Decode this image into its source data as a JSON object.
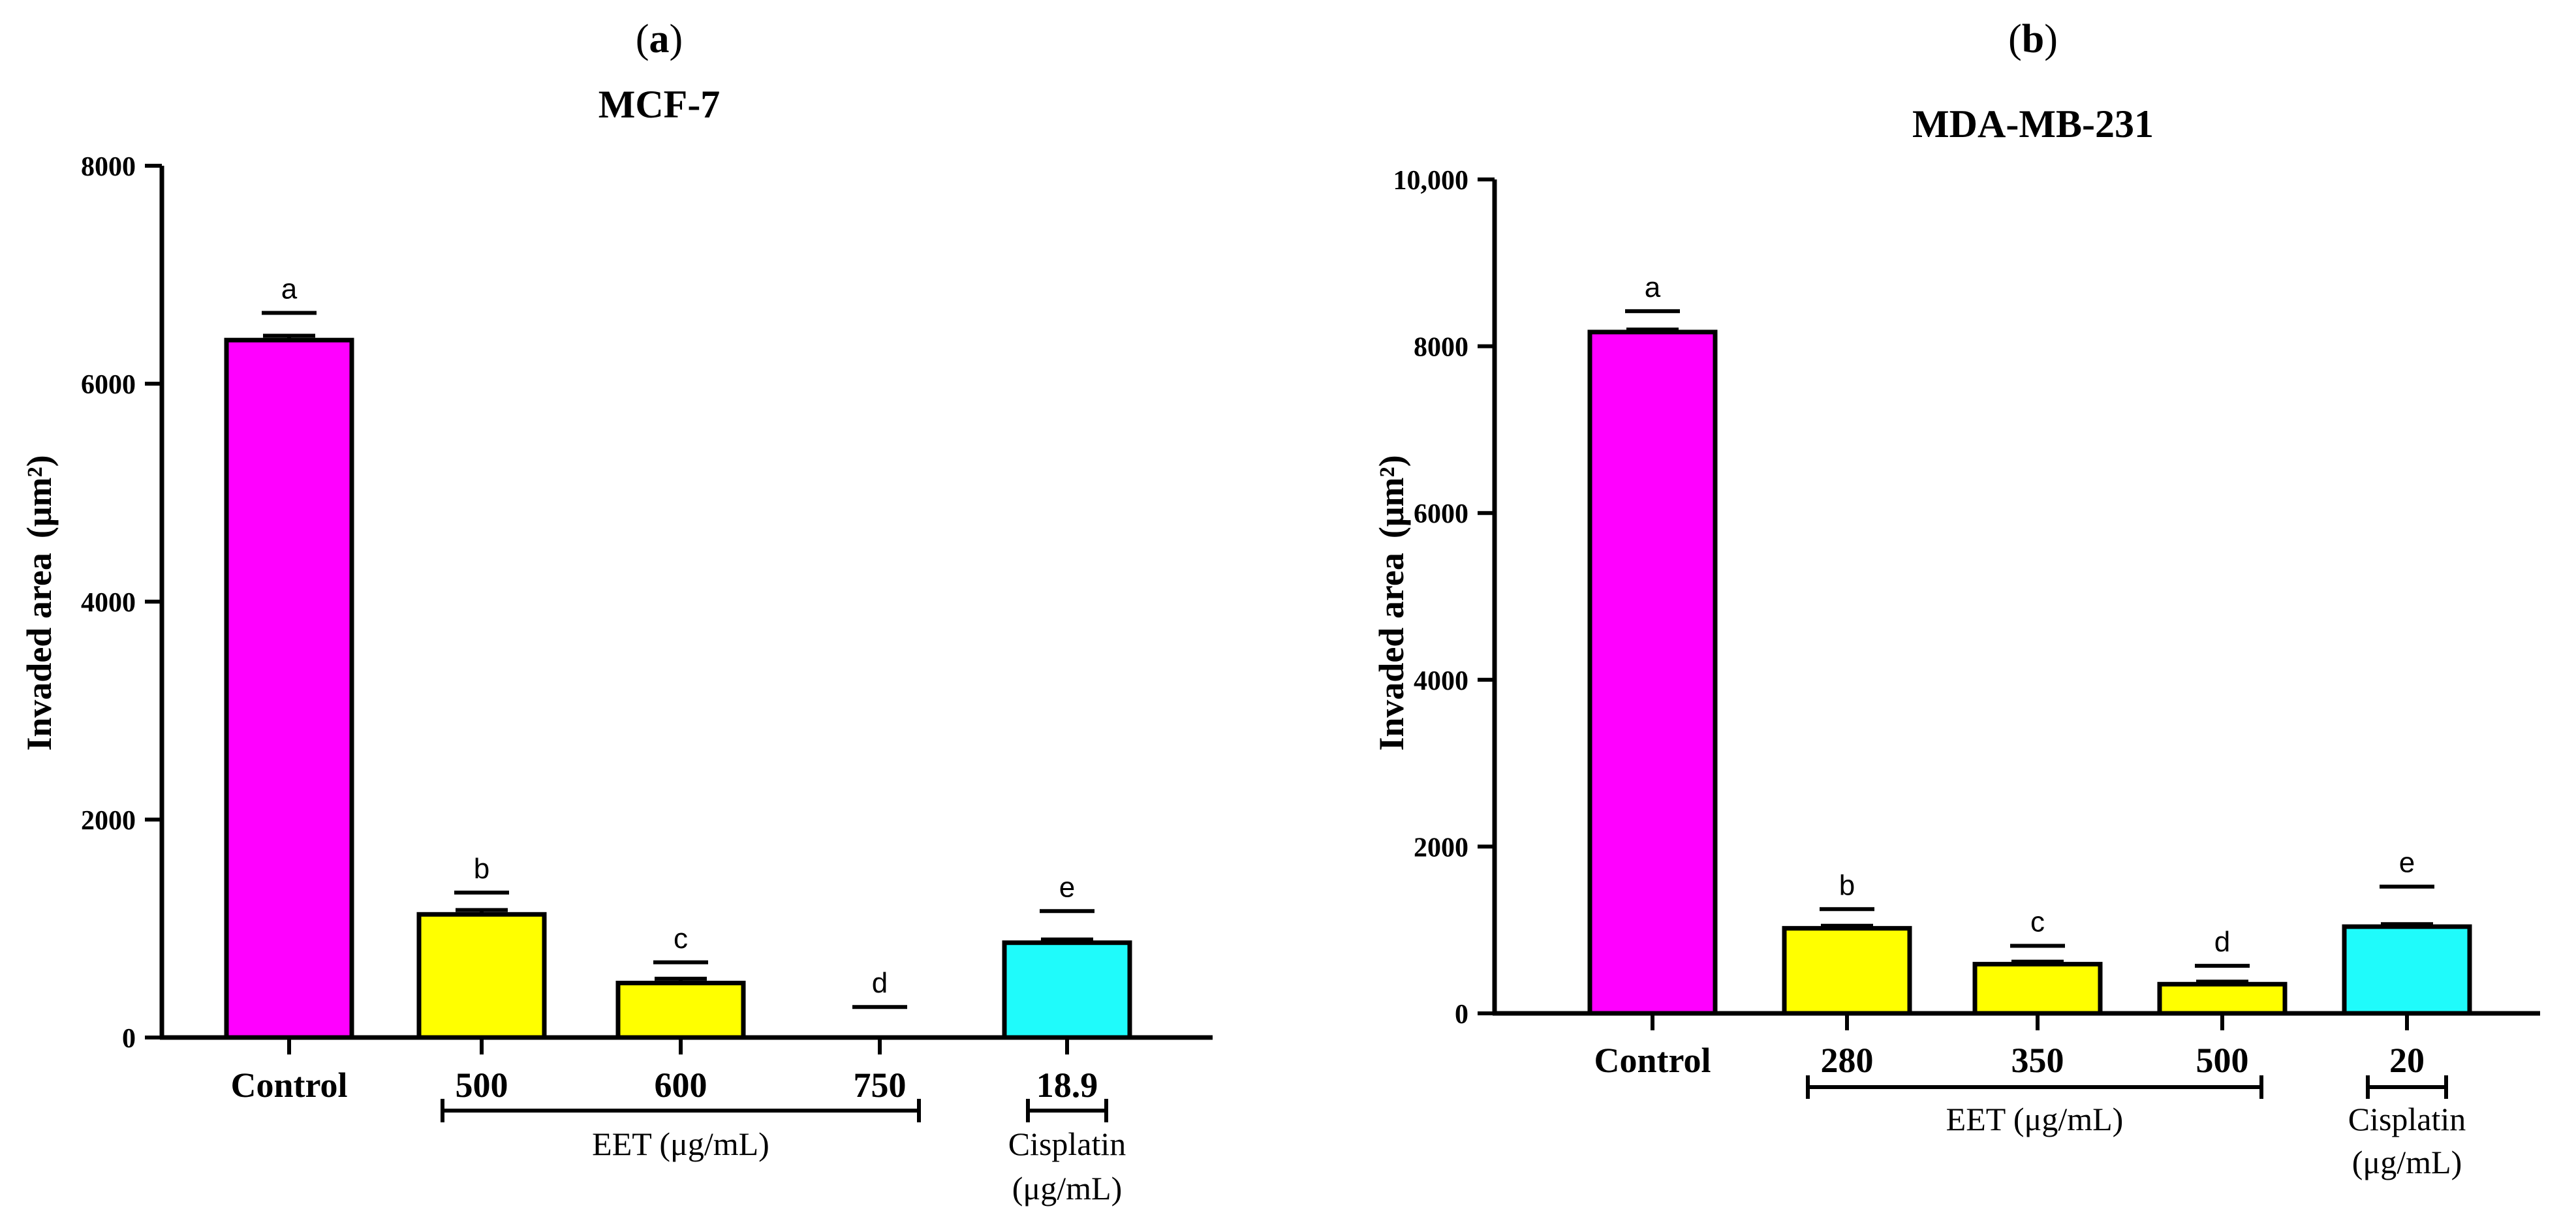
{
  "chart_data": [
    {
      "type": "bar",
      "panel_label": "a",
      "title": "MCF-7",
      "ylabel": "Invaded area",
      "ylabel_unit": "μm²",
      "ylim": [
        0,
        8000
      ],
      "yticks": [
        0,
        2000,
        4000,
        6000,
        8000
      ],
      "ytick_labels": [
        "0",
        "2000",
        "4000",
        "6000",
        "8000"
      ],
      "categories": [
        "Control",
        "500",
        "600",
        "750",
        "18.9"
      ],
      "values": [
        6400,
        1130,
        500,
        0,
        870
      ],
      "error": [
        40,
        40,
        40,
        0,
        30
      ],
      "letters": [
        "a",
        "b",
        "c",
        "d",
        "e"
      ],
      "letter_values": [
        6650,
        1330,
        690,
        280,
        1160
      ],
      "colors": [
        "#ff00ff",
        "#ffff00",
        "#ffff00",
        "#ffff00",
        "#1ffbfb"
      ],
      "groups": [
        {
          "label": "EET (μg/mL)",
          "lines": [
            "EET (μg/mL)"
          ],
          "from": 1,
          "to": 3
        },
        {
          "label": "Cisplatin (μg/mL)",
          "lines": [
            "Cisplatin",
            "(μg/mL)"
          ],
          "from": 4,
          "to": 4
        }
      ]
    },
    {
      "type": "bar",
      "panel_label": "b",
      "title": "MDA-MB-231",
      "ylabel": "Invaded area",
      "ylabel_unit": "μm²",
      "ylim": [
        0,
        10000
      ],
      "yticks": [
        0,
        2000,
        4000,
        6000,
        8000,
        10000
      ],
      "ytick_labels": [
        "0",
        "2000",
        "4000",
        "6000",
        "8000",
        "10,000"
      ],
      "categories": [
        "Control",
        "280",
        "350",
        "500",
        "20"
      ],
      "values": [
        8170,
        1020,
        590,
        350,
        1040
      ],
      "error": [
        30,
        30,
        30,
        30,
        30
      ],
      "letters": [
        "a",
        "b",
        "c",
        "d",
        "e"
      ],
      "letter_values": [
        8420,
        1250,
        810,
        570,
        1520
      ],
      "colors": [
        "#ff00ff",
        "#ffff00",
        "#ffff00",
        "#ffff00",
        "#1ffbfb"
      ],
      "groups": [
        {
          "label": "EET (μg/mL)",
          "lines": [
            "EET (μg/mL)"
          ],
          "from": 1,
          "to": 3
        },
        {
          "label": "Cisplatin (μg/mL)",
          "lines": [
            "Cisplatin",
            "(μg/mL)"
          ],
          "from": 4,
          "to": 4
        }
      ]
    }
  ]
}
